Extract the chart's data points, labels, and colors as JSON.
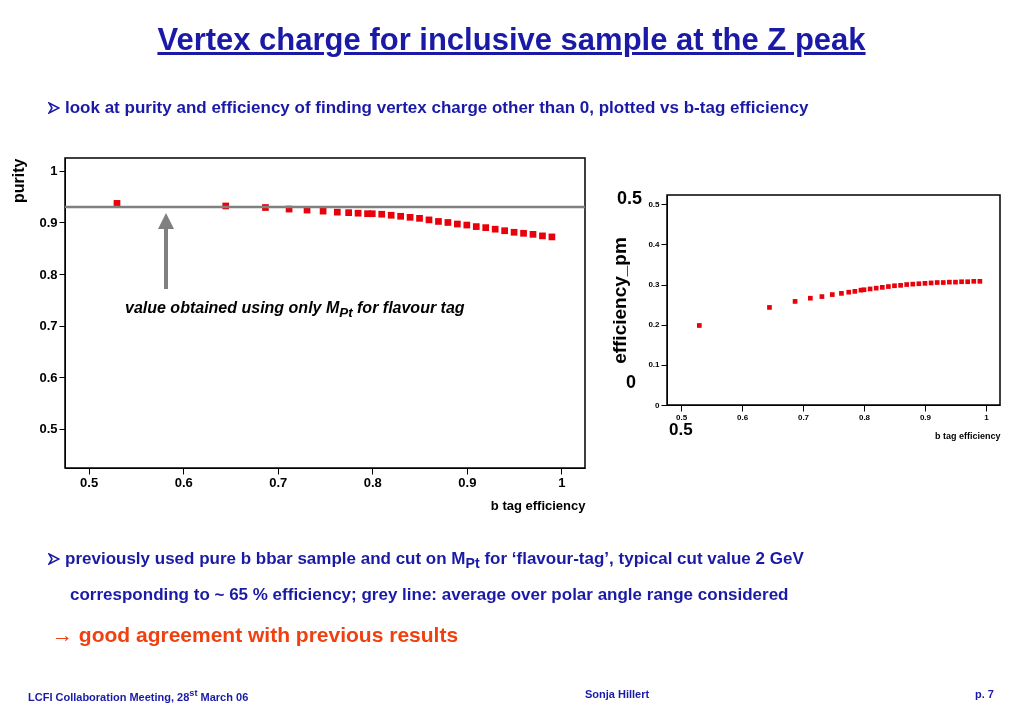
{
  "chart_data": [
    {
      "type": "scatter",
      "title": "Vertex charge for inclusive sample at the Z peak",
      "subtitle": "look at purity and efficiency of finding vertex charge other than 0, plotted vs b-tag efficiency",
      "xlabel": "b tag efficiency",
      "ylabel": "purity",
      "marker": "square",
      "color": "#e8000b",
      "x": [
        0.53,
        0.645,
        0.687,
        0.712,
        0.731,
        0.748,
        0.763,
        0.775,
        0.785,
        0.795,
        0.8,
        0.81,
        0.82,
        0.83,
        0.84,
        0.85,
        0.86,
        0.87,
        0.88,
        0.89,
        0.9,
        0.91,
        0.92,
        0.93,
        0.94,
        0.95,
        0.96,
        0.97,
        0.98,
        0.99
      ],
      "values": [
        0.937,
        0.932,
        0.929,
        0.926,
        0.924,
        0.922,
        0.92,
        0.919,
        0.918,
        0.917,
        0.917,
        0.916,
        0.914,
        0.912,
        0.91,
        0.908,
        0.905,
        0.902,
        0.9,
        0.897,
        0.895,
        0.892,
        0.89,
        0.887,
        0.884,
        0.881,
        0.879,
        0.877,
        0.874,
        0.872
      ],
      "xlim": [
        0.475,
        1.025
      ],
      "ylim": [
        0.424,
        1.025
      ],
      "xticks": [
        0.5,
        0.6,
        0.7,
        0.8,
        0.9,
        1
      ],
      "yticks": [
        0.5,
        0.6,
        0.7,
        0.8,
        0.9,
        1
      ],
      "ref_lines": [
        {
          "axis": "y",
          "value": 0.93,
          "color": "#808080"
        }
      ],
      "annotations": [
        "value obtained using only M$_{Pt}$ for flavour tag",
        "previously used pure b bbar sample and cut on M$_{Pt}$ for ‘flavour-tag’, typical cut value 2 GeV",
        "corresponding to ~ 65 % efficiency; grey line: average over polar angle range considered",
        "→ good agreement with previous results",
        "LCFI Collaboration Meeting, 28$^{st}$ March 06",
        "Sonja Hillert",
        "p. 7"
      ]
    },
    {
      "type": "scatter",
      "xlabel": "b tag efficiency",
      "ylabel": "efficiency_pm",
      "marker": "square",
      "color": "#e8000b",
      "x": [
        0.53,
        0.645,
        0.687,
        0.712,
        0.731,
        0.748,
        0.763,
        0.775,
        0.785,
        0.795,
        0.8,
        0.81,
        0.82,
        0.83,
        0.84,
        0.85,
        0.86,
        0.87,
        0.88,
        0.89,
        0.9,
        0.91,
        0.92,
        0.93,
        0.94,
        0.95,
        0.96,
        0.97,
        0.98,
        0.99
      ],
      "values": [
        0.198,
        0.243,
        0.258,
        0.266,
        0.27,
        0.275,
        0.278,
        0.281,
        0.283,
        0.286,
        0.287,
        0.289,
        0.291,
        0.293,
        0.295,
        0.297,
        0.298,
        0.3,
        0.301,
        0.302,
        0.303,
        0.304,
        0.305,
        0.305,
        0.306,
        0.306,
        0.307,
        0.307,
        0.308,
        0.308
      ],
      "xlim": [
        0.477,
        1.023
      ],
      "ylim": [
        0,
        0.523
      ],
      "xticks": [
        0.5,
        0.6,
        0.7,
        0.8,
        0.9,
        1
      ],
      "yticks": [
        0,
        0.1,
        0.2,
        0.3,
        0.4,
        0.5
      ],
      "annotations": [
        "0.5",
        "0",
        "0.5"
      ]
    }
  ]
}
